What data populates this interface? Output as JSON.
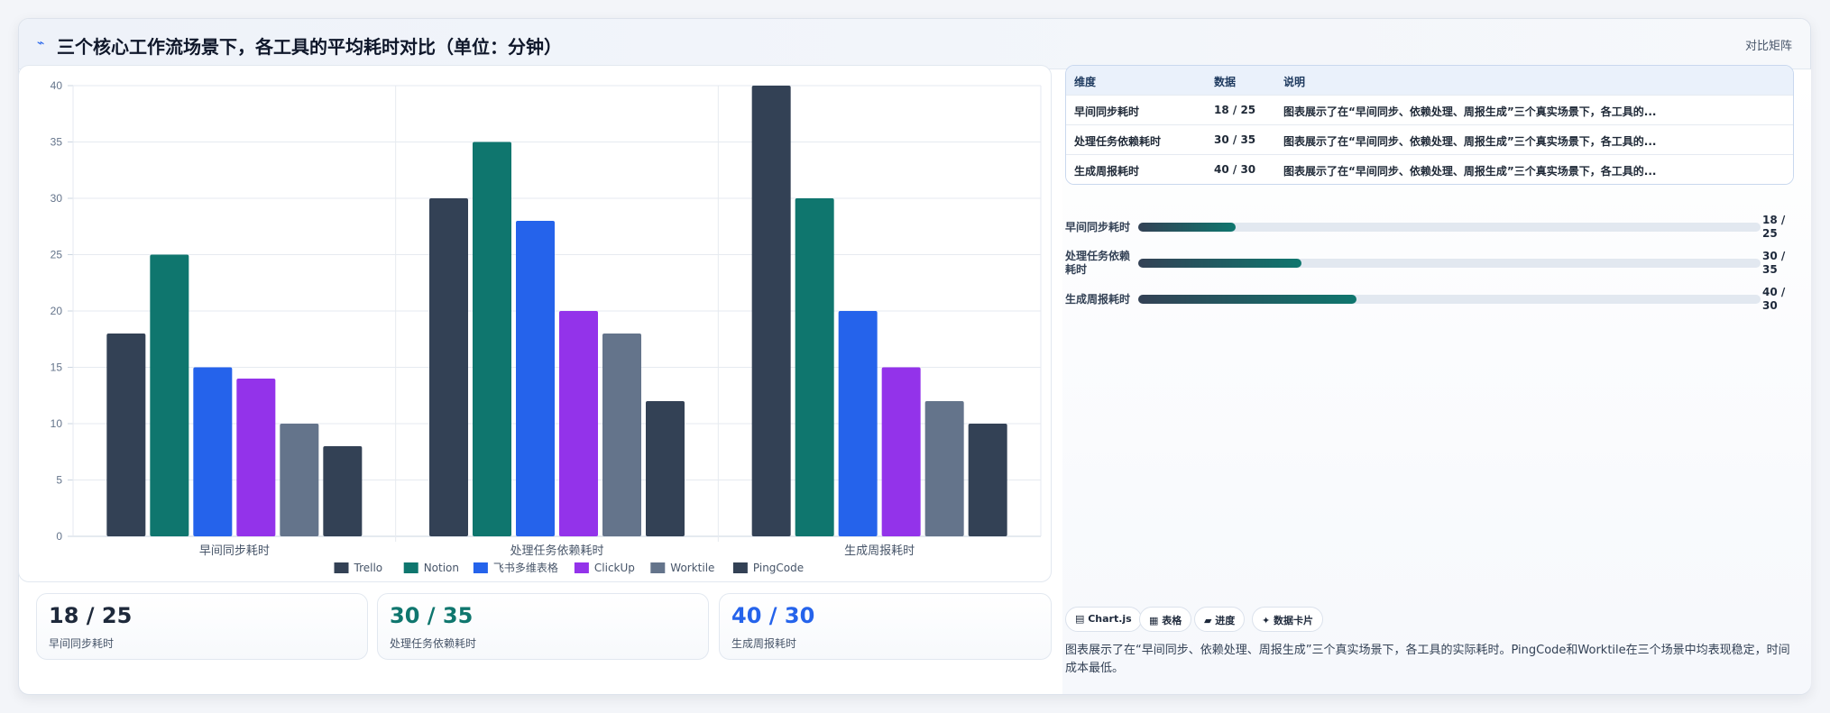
{
  "header": {
    "title": "三个核心工作流场景下，各工具的平均耗时对比（单位：分钟）",
    "right_label": "对比矩阵"
  },
  "chart_data": {
    "type": "bar",
    "categories": [
      "早间同步耗时",
      "处理任务依赖耗时",
      "生成周报耗时"
    ],
    "series": [
      {
        "name": "Trello",
        "color": "#334155",
        "values": [
          18,
          30,
          40
        ]
      },
      {
        "name": "Notion",
        "color": "#0f766e",
        "values": [
          25,
          35,
          30
        ]
      },
      {
        "name": "飞书多维表格",
        "color": "#2563eb",
        "values": [
          15,
          28,
          20
        ]
      },
      {
        "name": "ClickUp",
        "color": "#9333ea",
        "values": [
          14,
          20,
          15
        ]
      },
      {
        "name": "Worktile",
        "color": "#64748b",
        "values": [
          10,
          18,
          12
        ]
      },
      {
        "name": "PingCode",
        "color": "#334155",
        "values": [
          8,
          12,
          10
        ]
      }
    ],
    "yticks": [
      0,
      5,
      10,
      15,
      20,
      25,
      30,
      35,
      40
    ],
    "ylim": [
      0,
      40
    ],
    "grid": true,
    "legend_position": "bottom"
  },
  "stats": [
    {
      "value": "18 / 25",
      "label": "早间同步耗时",
      "color": "#1e293b"
    },
    {
      "value": "30 / 35",
      "label": "处理任务依赖耗时",
      "color": "#0f766e"
    },
    {
      "value": "40 / 30",
      "label": "生成周报耗时",
      "color": "#2563eb"
    }
  ],
  "table": {
    "headers": [
      "维度",
      "数据",
      "说明"
    ],
    "rows": [
      {
        "dim": "早间同步耗时",
        "data": "18 / 25",
        "desc": "图表展示了在“早间同步、依赖处理、周报生成”三个真实场景下，各工具的..."
      },
      {
        "dim": "处理任务依赖耗时",
        "data": "30 / 35",
        "desc": "图表展示了在“早间同步、依赖处理、周报生成”三个真实场景下，各工具的..."
      },
      {
        "dim": "生成周报耗时",
        "data": "40 / 30",
        "desc": "图表展示了在“早间同步、依赖处理、周报生成”三个真实场景下，各工具的..."
      }
    ]
  },
  "progress": [
    {
      "label": "早间同步耗时",
      "value": "18 / 25",
      "fill": 0.156
    },
    {
      "label": "处理任务依赖耗时",
      "value": "30 / 35",
      "fill": 0.262
    },
    {
      "label": "生成周报耗时",
      "value": "40 / 30",
      "fill": 0.35
    }
  ],
  "chips": [
    "▤ Chart.js",
    "▦ 表格",
    "▰ 进度",
    "✦ 数据卡片"
  ],
  "summary": "图表展示了在“早间同步、依赖处理、周报生成”三个真实场景下，各工具的实际耗时。PingCode和Worktile在三个场景中均表现稳定，时间成本最低。"
}
